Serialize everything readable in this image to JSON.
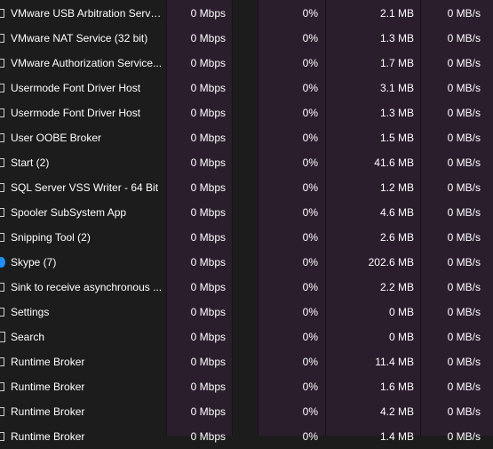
{
  "processes": [
    {
      "name": "VMware USB Arbitration Service",
      "network": "0 Mbps",
      "cpu": "0%",
      "memory": "2.1 MB",
      "disk": "0 MB/s",
      "icon": "service-window-icon"
    },
    {
      "name": "VMware NAT Service (32 bit)",
      "network": "0 Mbps",
      "cpu": "0%",
      "memory": "1.3 MB",
      "disk": "0 MB/s",
      "icon": "service-window-icon"
    },
    {
      "name": "VMware Authorization Service...",
      "network": "0 Mbps",
      "cpu": "0%",
      "memory": "1.7 MB",
      "disk": "0 MB/s",
      "icon": "service-window-icon"
    },
    {
      "name": "Usermode Font Driver Host",
      "network": "0 Mbps",
      "cpu": "0%",
      "memory": "3.1 MB",
      "disk": "0 MB/s",
      "icon": "service-window-icon"
    },
    {
      "name": "Usermode Font Driver Host",
      "network": "0 Mbps",
      "cpu": "0%",
      "memory": "1.3 MB",
      "disk": "0 MB/s",
      "icon": "service-window-icon"
    },
    {
      "name": "User OOBE Broker",
      "network": "0 Mbps",
      "cpu": "0%",
      "memory": "1.5 MB",
      "disk": "0 MB/s",
      "icon": "service-window-icon"
    },
    {
      "name": "Start (2)",
      "network": "0 Mbps",
      "cpu": "0%",
      "memory": "41.6 MB",
      "disk": "0 MB/s",
      "icon": "service-window-icon"
    },
    {
      "name": "SQL Server VSS Writer - 64 Bit",
      "network": "0 Mbps",
      "cpu": "0%",
      "memory": "1.2 MB",
      "disk": "0 MB/s",
      "icon": "service-window-icon"
    },
    {
      "name": "Spooler SubSystem App",
      "network": "0 Mbps",
      "cpu": "0%",
      "memory": "4.6 MB",
      "disk": "0 MB/s",
      "icon": "printer-icon"
    },
    {
      "name": "Snipping Tool (2)",
      "network": "0 Mbps",
      "cpu": "0%",
      "memory": "2.6 MB",
      "disk": "0 MB/s",
      "icon": "service-window-icon"
    },
    {
      "name": "Skype (7)",
      "network": "0 Mbps",
      "cpu": "0%",
      "memory": "202.6 MB",
      "disk": "0 MB/s",
      "icon": "skype-icon"
    },
    {
      "name": "Sink to receive asynchronous ...",
      "network": "0 Mbps",
      "cpu": "0%",
      "memory": "2.2 MB",
      "disk": "0 MB/s",
      "icon": "service-window-icon"
    },
    {
      "name": "Settings",
      "network": "0 Mbps",
      "cpu": "0%",
      "memory": "0 MB",
      "disk": "0 MB/s",
      "icon": "service-window-icon"
    },
    {
      "name": "Search",
      "network": "0 Mbps",
      "cpu": "0%",
      "memory": "0 MB",
      "disk": "0 MB/s",
      "icon": "search-icon"
    },
    {
      "name": "Runtime Broker",
      "network": "0 Mbps",
      "cpu": "0%",
      "memory": "11.4 MB",
      "disk": "0 MB/s",
      "icon": "service-window-icon"
    },
    {
      "name": "Runtime Broker",
      "network": "0 Mbps",
      "cpu": "0%",
      "memory": "1.6 MB",
      "disk": "0 MB/s",
      "icon": "service-window-icon"
    },
    {
      "name": "Runtime Broker",
      "network": "0 Mbps",
      "cpu": "0%",
      "memory": "4.2 MB",
      "disk": "0 MB/s",
      "icon": "service-window-icon"
    },
    {
      "name": "Runtime Broker",
      "network": "0 Mbps",
      "cpu": "0%",
      "memory": "1.4 MB",
      "disk": "0 MB/s",
      "icon": "service-window-icon"
    }
  ],
  "colors": {
    "background": "#1c1c1c",
    "highlight_column": "#2a1d2c",
    "text": "#ffffff",
    "skype_blue": "#1e90ff"
  }
}
